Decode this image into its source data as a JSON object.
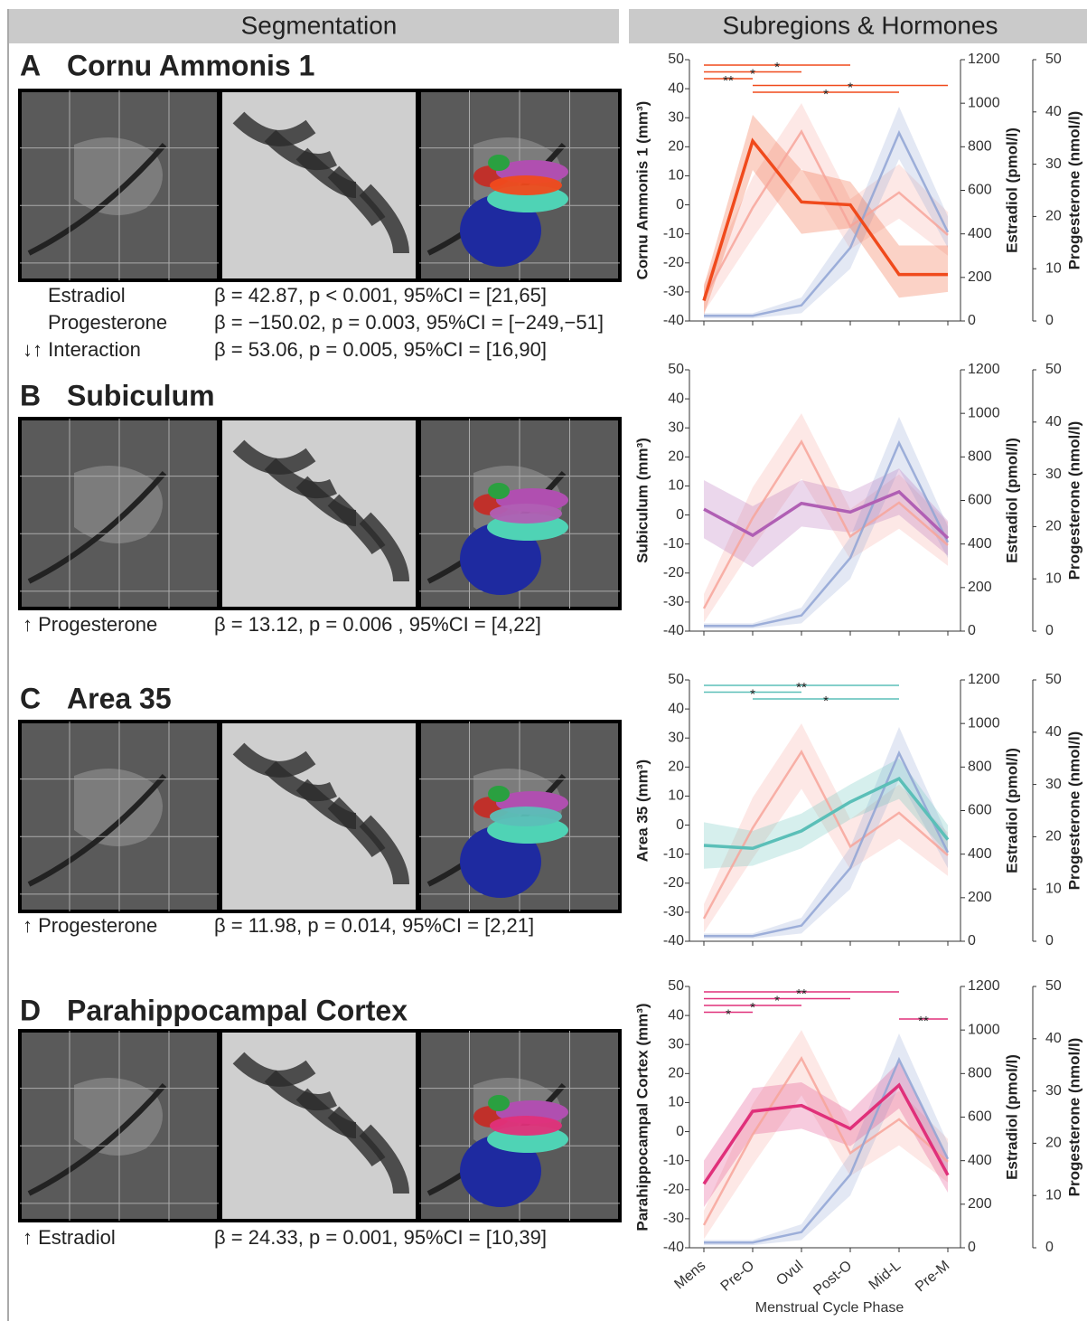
{
  "figure": {
    "headers": [
      "Segmentation",
      "Subregions & Hormones"
    ],
    "panels": [
      {
        "letter": "A",
        "title": "Cornu Ammonis 1",
        "color": "#f04a1c",
        "stats": [
          {
            "label": "Estradiol",
            "stat": "β  = 42.87, p < 0.001, 95%CI = [21,65]"
          },
          {
            "label": "Progesterone",
            "stat": "β = −150.02, p = 0.003, 95%CI = [−249,−51]"
          },
          {
            "label": "↓↑ Interaction",
            "stat": "β = 53.06, p = 0.005, 95%CI = [16,90]"
          }
        ]
      },
      {
        "letter": "B",
        "title": "Subiculum",
        "color": "#b05fb4",
        "stats": [
          {
            "label": "↑ Progesterone",
            "stat": "β  = 13.12, p = 0.006 , 95%CI = [4,22]"
          }
        ]
      },
      {
        "letter": "C",
        "title": "Area 35",
        "color": "#5bbfb8",
        "stats": [
          {
            "label": "↑ Progesterone",
            "stat": "β  = 11.98, p = 0.014, 95%CI = [2,21]"
          }
        ]
      },
      {
        "letter": "D",
        "title": "Parahippocampal Cortex",
        "color": "#e0307a",
        "stats": [
          {
            "label": "↑ Estradiol",
            "stat": "β  = 24.33, p = 0.001, 95%CI = [10,39]"
          }
        ]
      }
    ]
  },
  "chart_data": [
    {
      "type": "line",
      "ylabel": "Cornu Ammonis 1 (mm³)",
      "y2label": "Estradiol (pmol/l)",
      "y3label": "Progesterone (nmol/l)",
      "categories": [
        "Mens",
        "Pre-O",
        "Ovul",
        "Post-O",
        "Mid-L",
        "Pre-M"
      ],
      "ylim": [
        -40,
        50
      ],
      "yticks": [
        -40,
        -30,
        -20,
        -10,
        0,
        10,
        20,
        30,
        40,
        50
      ],
      "y2lim": [
        0,
        1200
      ],
      "y2ticks": [
        0,
        200,
        400,
        600,
        800,
        1000,
        1200
      ],
      "y3lim": [
        0,
        50
      ],
      "y3ticks": [
        0,
        10,
        20,
        30,
        40,
        50
      ],
      "series": [
        {
          "axis": "y2",
          "color": "#f7a49a",
          "values": [
            104,
            520,
            870,
            435,
            590,
            395
          ],
          "lower": [
            40,
            380,
            700,
            330,
            470,
            300
          ],
          "upper": [
            170,
            660,
            1000,
            560,
            720,
            500
          ]
        },
        {
          "axis": "y3",
          "color": "#8fa3d3",
          "values": [
            1,
            1,
            3,
            14,
            36,
            17
          ],
          "lower": [
            0.5,
            0.5,
            1.5,
            10,
            31,
            14
          ],
          "upper": [
            1.5,
            1.5,
            4.5,
            18,
            41,
            20
          ]
        },
        {
          "color": "#f04a1c",
          "values": [
            -33,
            22,
            1,
            0,
            -24,
            -24
          ],
          "lower": [
            -38,
            12,
            -10,
            -8,
            -32,
            -30
          ],
          "upper": [
            -28,
            31,
            12,
            8,
            -14,
            -14
          ]
        }
      ],
      "significance": [
        {
          "label": "*",
          "from": 0,
          "to": 3
        },
        {
          "label": "*",
          "from": 0,
          "to": 2
        },
        {
          "label": "**",
          "from": 0,
          "to": 1
        },
        {
          "label": "*",
          "from": 1,
          "to": 5
        },
        {
          "label": "*",
          "from": 1,
          "to": 4
        }
      ]
    },
    {
      "type": "line",
      "ylabel": "Subiculum (mm³)",
      "y2label": "Estradiol (pmol/l)",
      "y3label": "Progesterone (nmol/l)",
      "categories": [
        "Mens",
        "Pre-O",
        "Ovul",
        "Post-O",
        "Mid-L",
        "Pre-M"
      ],
      "ylim": [
        -40,
        50
      ],
      "yticks": [
        -40,
        -30,
        -20,
        -10,
        0,
        10,
        20,
        30,
        40,
        50
      ],
      "y2lim": [
        0,
        1200
      ],
      "y2ticks": [
        0,
        200,
        400,
        600,
        800,
        1000,
        1200
      ],
      "y3lim": [
        0,
        50
      ],
      "y3ticks": [
        0,
        10,
        20,
        30,
        40,
        50
      ],
      "series": [
        {
          "axis": "y2",
          "color": "#f7a49a",
          "values": [
            104,
            520,
            870,
            435,
            590,
            395
          ],
          "lower": [
            40,
            380,
            700,
            330,
            470,
            300
          ],
          "upper": [
            170,
            660,
            1000,
            560,
            720,
            500
          ]
        },
        {
          "axis": "y3",
          "color": "#8fa3d3",
          "values": [
            1,
            1,
            3,
            14,
            36,
            17
          ],
          "lower": [
            0.5,
            0.5,
            1.5,
            10,
            31,
            14
          ],
          "upper": [
            1.5,
            1.5,
            4.5,
            18,
            41,
            20
          ]
        },
        {
          "color": "#b05fb4",
          "values": [
            2,
            -7,
            4,
            1,
            8,
            -8
          ],
          "lower": [
            -8,
            -18,
            -4,
            -6,
            0,
            -14
          ],
          "upper": [
            12,
            3,
            12,
            8,
            16,
            -2
          ]
        }
      ],
      "significance": []
    },
    {
      "type": "line",
      "ylabel": "Area 35 (mm³)",
      "y2label": "Estradiol (pmol/l)",
      "y3label": "Progesterone (nmol/l)",
      "categories": [
        "Mens",
        "Pre-O",
        "Ovul",
        "Post-O",
        "Mid-L",
        "Pre-M"
      ],
      "ylim": [
        -40,
        50
      ],
      "yticks": [
        -40,
        -30,
        -20,
        -10,
        0,
        10,
        20,
        30,
        40,
        50
      ],
      "y2lim": [
        0,
        1200
      ],
      "y2ticks": [
        0,
        200,
        400,
        600,
        800,
        1000,
        1200
      ],
      "y3lim": [
        0,
        50
      ],
      "y3ticks": [
        0,
        10,
        20,
        30,
        40,
        50
      ],
      "series": [
        {
          "axis": "y2",
          "color": "#f7a49a",
          "values": [
            104,
            520,
            870,
            435,
            590,
            395
          ],
          "lower": [
            40,
            380,
            700,
            330,
            470,
            300
          ],
          "upper": [
            170,
            660,
            1000,
            560,
            720,
            500
          ]
        },
        {
          "axis": "y3",
          "color": "#8fa3d3",
          "values": [
            1,
            1,
            3,
            14,
            36,
            17
          ],
          "lower": [
            0.5,
            0.5,
            1.5,
            10,
            31,
            14
          ],
          "upper": [
            1.5,
            1.5,
            4.5,
            18,
            41,
            20
          ]
        },
        {
          "color": "#5bbfb8",
          "values": [
            -7,
            -8,
            -2,
            8,
            16,
            -5
          ],
          "lower": [
            -15,
            -14,
            -8,
            2,
            9,
            -10
          ],
          "upper": [
            1,
            -2,
            4,
            14,
            23,
            0
          ]
        }
      ],
      "significance": [
        {
          "label": "**",
          "from": 0,
          "to": 4
        },
        {
          "label": "*",
          "from": 0,
          "to": 2
        },
        {
          "label": "*",
          "from": 1,
          "to": 4
        }
      ]
    },
    {
      "type": "line",
      "ylabel": "Parahippocampal Cortex (mm³)",
      "y2label": "Estradiol (pmol/l)",
      "y3label": "Progesterone (nmol/l)",
      "xlabel": "Menstrual Cycle Phase",
      "categories": [
        "Mens",
        "Pre-O",
        "Ovul",
        "Post-O",
        "Mid-L",
        "Pre-M"
      ],
      "ylim": [
        -40,
        50
      ],
      "yticks": [
        -40,
        -30,
        -20,
        -10,
        0,
        10,
        20,
        30,
        40,
        50
      ],
      "y2lim": [
        0,
        1200
      ],
      "y2ticks": [
        0,
        200,
        400,
        600,
        800,
        1000,
        1200
      ],
      "y3lim": [
        0,
        50
      ],
      "y3ticks": [
        0,
        10,
        20,
        30,
        40,
        50
      ],
      "series": [
        {
          "axis": "y2",
          "color": "#f7a49a",
          "values": [
            104,
            520,
            870,
            435,
            590,
            395
          ],
          "lower": [
            40,
            380,
            700,
            330,
            470,
            300
          ],
          "upper": [
            170,
            660,
            1000,
            560,
            720,
            500
          ]
        },
        {
          "axis": "y3",
          "color": "#8fa3d3",
          "values": [
            1,
            1,
            3,
            14,
            36,
            17
          ],
          "lower": [
            0.5,
            0.5,
            1.5,
            10,
            31,
            14
          ],
          "upper": [
            1.5,
            1.5,
            4.5,
            18,
            41,
            20
          ]
        },
        {
          "color": "#e0307a",
          "values": [
            -18,
            7,
            9,
            1,
            16,
            -15
          ],
          "lower": [
            -26,
            -1,
            1,
            -5,
            8,
            -21
          ],
          "upper": [
            -10,
            15,
            17,
            7,
            24,
            -9
          ]
        }
      ],
      "significance": [
        {
          "label": "**",
          "from": 0,
          "to": 4
        },
        {
          "label": "*",
          "from": 0,
          "to": 3
        },
        {
          "label": "*",
          "from": 0,
          "to": 2
        },
        {
          "label": "*",
          "from": 0,
          "to": 1
        },
        {
          "label": "**",
          "from": 4,
          "to": 5
        }
      ]
    }
  ]
}
